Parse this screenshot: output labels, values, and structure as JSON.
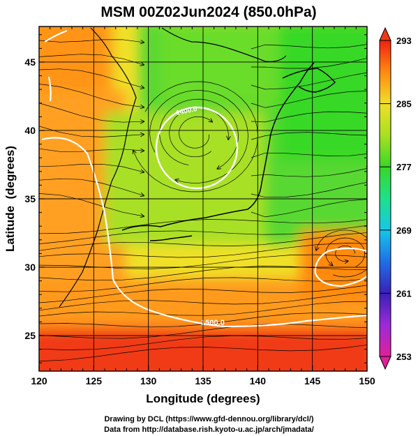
{
  "chart_data": {
    "type": "heatmap",
    "title": "MSM 00Z02Jun2024 (850.0hPa)",
    "xlabel": "Longitude (degrees)",
    "ylabel": "Latitude  (degrees)",
    "xlim": [
      120,
      150
    ],
    "ylim": [
      22.4,
      47.6
    ],
    "x_ticks": [
      120,
      125,
      130,
      135,
      140,
      145,
      150
    ],
    "y_ticks": [
      25,
      30,
      35,
      40,
      45
    ],
    "grid": true,
    "colorbar": {
      "range": [
        253,
        293
      ],
      "tick_labels": [
        293,
        285,
        277,
        269,
        261,
        253
      ],
      "colors": [
        "#e0209a",
        "#9b2bd8",
        "#3a1fb8",
        "#1f6fe8",
        "#15c8e8",
        "#1ee08a",
        "#38d828",
        "#a8e020",
        "#f0e028",
        "#ff8a10",
        "#f02010"
      ]
    },
    "contour_labels": [
      "1500.0",
      "1400.0"
    ],
    "features": {
      "low_center": {
        "lon": 134.4,
        "lat": 39.7
      },
      "high_center": {
        "lon": 148.0,
        "lat": 31.0
      }
    }
  },
  "footer": {
    "line1": "Drawing by DCL (https://www.gfd-dennou.org/library/dcl/)",
    "line2": "Data from http://database.rish.kyoto-u.ac.jp/arch/jmadata/"
  }
}
